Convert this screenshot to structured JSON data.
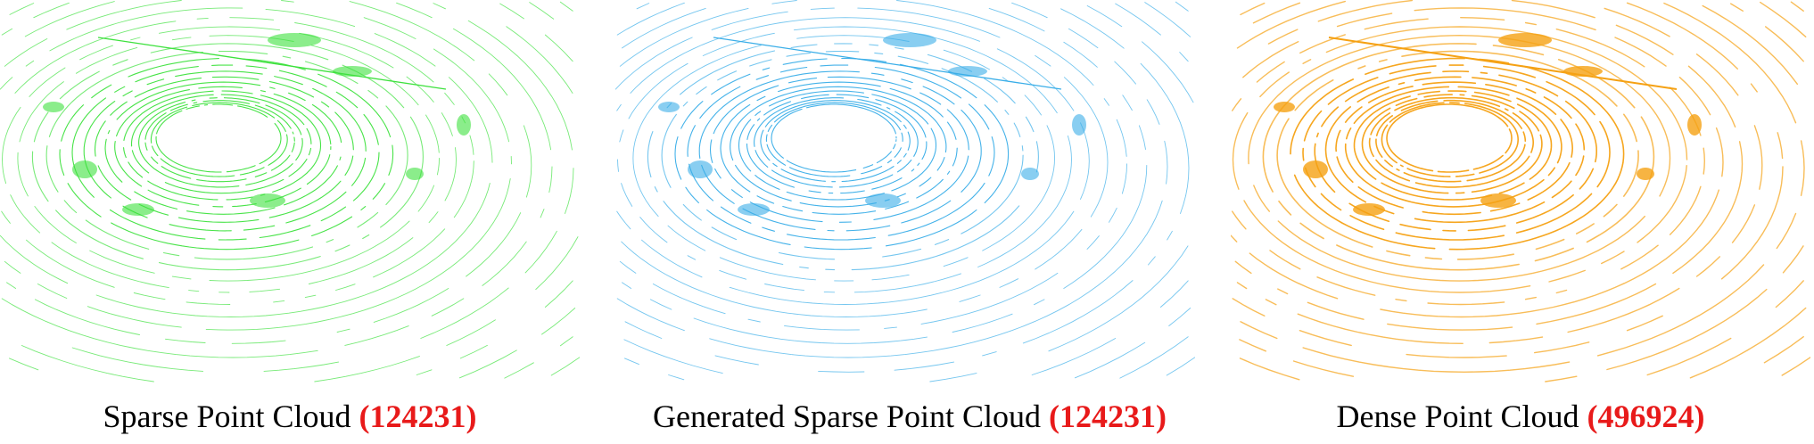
{
  "panels": [
    {
      "caption": "Sparse Point Cloud",
      "count": "(124231)",
      "color": "#3ee13e",
      "density": "sparse"
    },
    {
      "caption": "Generated Sparse Point Cloud",
      "count": "(124231)",
      "color": "#3aaee8",
      "density": "sparse"
    },
    {
      "caption": "Dense Point Cloud",
      "count": "(496924)",
      "color": "#f5a113",
      "density": "dense"
    }
  ],
  "colors": {
    "count_text": "#e81a1a",
    "caption_text": "#000000",
    "background": "#ffffff"
  }
}
